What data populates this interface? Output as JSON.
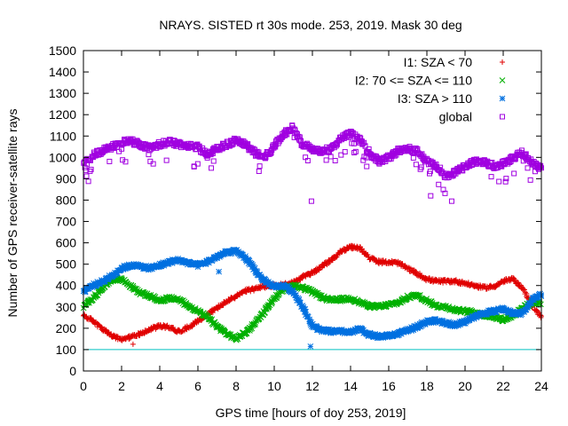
{
  "chart_data": {
    "type": "scatter",
    "title": "NRAYS. SISTED rt 30s mode. 253, 2019. Mask 30 deg",
    "xlabel": "GPS time [hours of doy 253, 2019]",
    "ylabel": "Number of GPS receiver-satellite rays",
    "xlim": [
      0,
      24
    ],
    "ylim": [
      0,
      1500
    ],
    "xticks": [
      0,
      2,
      4,
      6,
      8,
      10,
      12,
      14,
      16,
      18,
      20,
      22,
      24
    ],
    "yticks": [
      0,
      100,
      200,
      300,
      400,
      500,
      600,
      700,
      800,
      900,
      1000,
      1100,
      1200,
      1300,
      1400,
      1500
    ],
    "legend_position": "top-right",
    "threshold_line": {
      "y": 100,
      "color": "#00c0c0"
    },
    "series": [
      {
        "name": "I1: SZA < 70",
        "color": "#e00000",
        "marker": "plus",
        "x": [
          0,
          0.5,
          1,
          1.5,
          2,
          2.5,
          3,
          3.5,
          4,
          4.5,
          5,
          5.5,
          6,
          6.5,
          7,
          7.5,
          8,
          8.5,
          9,
          9.5,
          10,
          10.5,
          11,
          11.5,
          12,
          12.5,
          13,
          13.5,
          14,
          14.5,
          15,
          15.5,
          16,
          16.5,
          17,
          17.5,
          18,
          18.5,
          19,
          19.5,
          20,
          20.5,
          21,
          21.5,
          22,
          22.5,
          23,
          23.5,
          24
        ],
        "y": [
          260,
          235,
          195,
          165,
          145,
          160,
          175,
          195,
          210,
          205,
          185,
          205,
          235,
          265,
          295,
          325,
          350,
          375,
          385,
          395,
          400,
          405,
          415,
          440,
          460,
          490,
          520,
          560,
          580,
          575,
          530,
          510,
          510,
          505,
          480,
          455,
          430,
          420,
          420,
          420,
          410,
          400,
          390,
          395,
          420,
          430,
          390,
          310,
          250
        ]
      },
      {
        "name": "I2: 70 <= SZA <= 110",
        "color": "#00b000",
        "marker": "cross",
        "x": [
          0,
          0.5,
          1,
          1.5,
          2,
          2.5,
          3,
          3.5,
          4,
          4.5,
          5,
          5.5,
          6,
          6.5,
          7,
          7.5,
          8,
          8.5,
          9,
          9.5,
          10,
          10.5,
          11,
          11.5,
          12,
          12.5,
          13,
          13.5,
          14,
          14.5,
          15,
          15.5,
          16,
          16.5,
          17,
          17.5,
          18,
          18.5,
          19,
          19.5,
          20,
          20.5,
          21,
          21.5,
          22,
          22.5,
          23,
          23.5,
          24
        ],
        "y": [
          300,
          340,
          390,
          430,
          430,
          395,
          365,
          350,
          330,
          340,
          335,
          305,
          280,
          250,
          210,
          175,
          150,
          180,
          225,
          280,
          340,
          385,
          400,
          390,
          370,
          345,
          330,
          335,
          340,
          320,
          305,
          300,
          310,
          320,
          345,
          355,
          330,
          305,
          300,
          285,
          280,
          275,
          260,
          255,
          240,
          260,
          295,
          320,
          320
        ]
      },
      {
        "name": "I3: SZA > 110",
        "color": "#0070e0",
        "marker": "star",
        "x": [
          0,
          0.5,
          1,
          1.5,
          2,
          2.5,
          3,
          3.5,
          4,
          4.5,
          5,
          5.5,
          6,
          6.5,
          7,
          7.5,
          8,
          8.5,
          9,
          9.5,
          10,
          10.5,
          11,
          11.5,
          12,
          12.5,
          13,
          13.5,
          14,
          14.5,
          15,
          15.5,
          16,
          16.5,
          17,
          17.5,
          18,
          18.5,
          19,
          19.5,
          20,
          20.5,
          21,
          21.5,
          22,
          22.5,
          23,
          23.5,
          24
        ],
        "y": [
          375,
          400,
          420,
          445,
          480,
          495,
          490,
          480,
          495,
          510,
          520,
          505,
          495,
          510,
          535,
          555,
          560,
          530,
          470,
          420,
          395,
          400,
          370,
          300,
          210,
          190,
          185,
          185,
          180,
          195,
          170,
          160,
          165,
          175,
          190,
          210,
          230,
          235,
          225,
          215,
          230,
          255,
          270,
          280,
          290,
          270,
          270,
          330,
          360
        ]
      },
      {
        "name": "global",
        "color": "#a000e0",
        "marker": "square",
        "x": [
          0,
          0.5,
          1,
          1.5,
          2,
          2.5,
          3,
          3.5,
          4,
          4.5,
          5,
          5.5,
          6,
          6.5,
          7,
          7.5,
          8,
          8.5,
          9,
          9.5,
          10,
          10.5,
          11,
          11.5,
          12,
          12.5,
          13,
          13.5,
          14,
          14.5,
          15,
          15.5,
          16,
          16.5,
          17,
          17.5,
          18,
          18.5,
          19,
          19.5,
          20,
          20.5,
          21,
          21.5,
          22,
          22.5,
          23,
          23.5,
          24
        ],
        "y": [
          960,
          1010,
          1030,
          1050,
          1070,
          1075,
          1060,
          1045,
          1060,
          1075,
          1060,
          1055,
          1050,
          1010,
          1040,
          1060,
          1080,
          1060,
          1020,
          1000,
          1050,
          1110,
          1140,
          1060,
          1040,
          1030,
          1040,
          1090,
          1110,
          1080,
          1020,
          980,
          1000,
          1030,
          1040,
          1030,
          980,
          960,
          910,
          930,
          960,
          980,
          980,
          960,
          970,
          1000,
          1020,
          980,
          950
        ]
      }
    ],
    "outliers": [
      {
        "series": "I1: SZA < 70",
        "x": 2.6,
        "y": 125
      },
      {
        "series": "I3: SZA > 110",
        "x": 11.9,
        "y": 115
      },
      {
        "series": "I3: SZA > 110",
        "x": 7.1,
        "y": 465
      },
      {
        "series": "global",
        "x": 11.95,
        "y": 795
      },
      {
        "series": "global",
        "x": 18.2,
        "y": 820
      },
      {
        "series": "global",
        "x": 19.3,
        "y": 795
      },
      {
        "series": "global",
        "x": 6.7,
        "y": 950
      },
      {
        "series": "global",
        "x": 9.2,
        "y": 935
      }
    ]
  }
}
